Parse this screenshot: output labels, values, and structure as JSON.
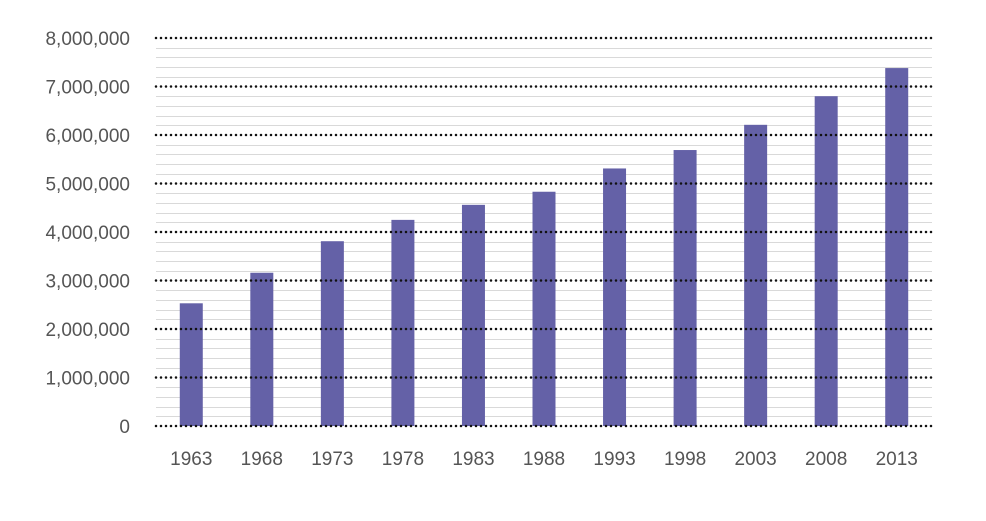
{
  "chart_data": {
    "type": "bar",
    "title": "",
    "xlabel": "",
    "ylabel": "",
    "categories": [
      "1963",
      "1968",
      "1973",
      "1978",
      "1983",
      "1988",
      "1993",
      "1998",
      "2003",
      "2008",
      "2013"
    ],
    "values": [
      2530000,
      3160000,
      3810000,
      4250000,
      4560000,
      4830000,
      5310000,
      5690000,
      6210000,
      6800000,
      7380000
    ],
    "ylim": [
      0,
      8000000
    ],
    "yticks": [
      0,
      1000000,
      2000000,
      3000000,
      4000000,
      5000000,
      6000000,
      7000000,
      8000000
    ],
    "ytick_labels": [
      "0",
      "1,000,000",
      "2,000,000",
      "3,000,000",
      "4,000,000",
      "5,000,000",
      "6,000,000",
      "7,000,000",
      "8,000,000"
    ],
    "minor_step": 200000,
    "grid": true,
    "legend": "none",
    "bar_color": "#6461a7"
  }
}
